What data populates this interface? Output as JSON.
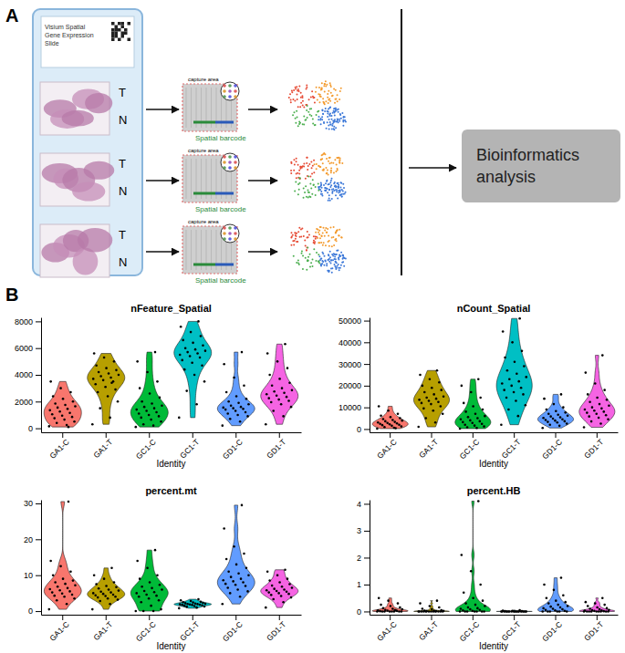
{
  "panel_a": {
    "label": "A",
    "slide_label": [
      "Visium Spatial",
      "Gene Expression",
      "Slide"
    ],
    "sections": [
      {
        "top": "T",
        "bottom": "N"
      },
      {
        "top": "T",
        "bottom": "N"
      },
      {
        "top": "T",
        "bottom": "N"
      }
    ],
    "captures": [
      {
        "label": "capture area",
        "barcode": "Spatial barcode"
      },
      {
        "label": "capture area",
        "barcode": "Spatial barcode"
      },
      {
        "label": "capture area",
        "barcode": "Spatial barcode"
      }
    ],
    "analysis": "Bioinformatics analysis"
  },
  "panel_b": {
    "label": "B"
  },
  "chart_data": [
    {
      "type": "violin",
      "title": "nFeature_Spatial",
      "x_label": "Identity",
      "categories": [
        "GA1-C",
        "GA1-T",
        "GC1-C",
        "GC1-T",
        "GD1-C",
        "GD1-T"
      ],
      "colors": [
        "#F8766D",
        "#B79F00",
        "#00BA38",
        "#00BFC4",
        "#619CFF",
        "#F564E3"
      ],
      "ylim": [
        -300,
        8300
      ],
      "yticks": [
        0,
        2000,
        4000,
        6000,
        8000
      ],
      "values": [
        [
          150,
          250,
          400,
          500,
          650,
          750,
          850,
          950,
          1050,
          1150,
          1250,
          1350,
          1450,
          1550,
          1650,
          1750,
          1850,
          2000,
          2200,
          2400,
          2700,
          3000,
          3500,
          100
        ],
        [
          300,
          800,
          1500,
          2000,
          2400,
          2700,
          2900,
          3100,
          3300,
          3500,
          3600,
          3700,
          3800,
          3900,
          4000,
          4100,
          4200,
          4350,
          4500,
          4700,
          5000,
          5300,
          5600,
          3400
        ],
        [
          100,
          200,
          300,
          500,
          650,
          800,
          900,
          1000,
          1100,
          1200,
          1300,
          1400,
          1500,
          1600,
          1700,
          1850,
          2000,
          2300,
          2600,
          3000,
          3500,
          4200,
          5000,
          5700
        ],
        [
          800,
          1800,
          2800,
          3500,
          4000,
          4400,
          4700,
          4900,
          5100,
          5300,
          5400,
          5500,
          5600,
          5700,
          5800,
          5900,
          6000,
          6200,
          6400,
          6600,
          6900,
          7200,
          7600,
          8000
        ],
        [
          200,
          500,
          700,
          900,
          1000,
          1100,
          1200,
          1300,
          1400,
          1450,
          1500,
          1550,
          1600,
          1700,
          1800,
          1900,
          2000,
          2200,
          2400,
          2700,
          3200,
          3800,
          4800,
          5700
        ],
        [
          300,
          900,
          1300,
          1600,
          1800,
          1950,
          2050,
          2150,
          2250,
          2350,
          2450,
          2550,
          2650,
          2750,
          2850,
          3000,
          3200,
          3400,
          3700,
          4000,
          4500,
          5000,
          5600,
          6300
        ]
      ]
    },
    {
      "type": "violin",
      "title": "nCount_Spatial",
      "x_label": "Identity",
      "categories": [
        "GA1-C",
        "GA1-T",
        "GC1-C",
        "GC1-T",
        "GD1-C",
        "GD1-T"
      ],
      "colors": [
        "#F8766D",
        "#B79F00",
        "#00BA38",
        "#00BFC4",
        "#619CFF",
        "#F564E3"
      ],
      "ylim": [
        -1500,
        51500
      ],
      "yticks": [
        0,
        10000,
        20000,
        30000,
        40000,
        50000
      ],
      "values": [
        [
          200,
          600,
          900,
          1200,
          1500,
          1800,
          2000,
          2200,
          2400,
          2600,
          2800,
          3000,
          3300,
          3600,
          3900,
          4200,
          4600,
          5000,
          5500,
          6200,
          7000,
          8500,
          10500,
          400
        ],
        [
          1000,
          3000,
          5000,
          7000,
          8500,
          9500,
          10500,
          11500,
          12000,
          12500,
          13000,
          13500,
          14000,
          14500,
          15000,
          16000,
          17000,
          18000,
          19000,
          20000,
          21500,
          23000,
          25000,
          27000
        ],
        [
          200,
          500,
          800,
          1200,
          1600,
          2000,
          2400,
          2800,
          3200,
          3600,
          4000,
          4500,
          5000,
          5500,
          6000,
          7000,
          8000,
          9000,
          10500,
          12000,
          14500,
          17000,
          20000,
          23000
        ],
        [
          2000,
          6000,
          9000,
          11000,
          13000,
          14500,
          16000,
          17000,
          18000,
          19000,
          20000,
          21000,
          22000,
          23000,
          24000,
          25500,
          27000,
          29000,
          31000,
          33000,
          36000,
          40000,
          45000,
          51000
        ],
        [
          500,
          1500,
          2000,
          2500,
          3000,
          3300,
          3600,
          3900,
          4200,
          4500,
          4800,
          5100,
          5400,
          5800,
          6200,
          6600,
          7000,
          7600,
          8300,
          9000,
          10000,
          11500,
          14000,
          16000
        ],
        [
          800,
          2500,
          3500,
          4500,
          5200,
          5800,
          6400,
          7000,
          7500,
          8000,
          8500,
          9000,
          9500,
          10000,
          10800,
          11500,
          12500,
          13500,
          14500,
          16000,
          18000,
          21000,
          26000,
          34000
        ]
      ]
    },
    {
      "type": "violin",
      "title": "percent.mt",
      "x_label": "Identity",
      "categories": [
        "GA1-C",
        "GA1-T",
        "GC1-C",
        "GC1-T",
        "GD1-C",
        "GD1-T"
      ],
      "colors": [
        "#F8766D",
        "#B79F00",
        "#00BA38",
        "#00BFC4",
        "#619CFF",
        "#F564E3"
      ],
      "ylim": [
        -1,
        31
      ],
      "yticks": [
        0,
        10,
        20,
        30
      ],
      "values": [
        [
          0.5,
          2,
          3,
          3.5,
          4,
          4.3,
          4.6,
          4.9,
          5.2,
          5.5,
          5.8,
          6.1,
          6.4,
          6.8,
          7.2,
          7.6,
          8,
          8.5,
          9,
          10,
          11,
          12.5,
          14,
          30.5
        ],
        [
          0.5,
          2,
          2.8,
          3.2,
          3.5,
          3.8,
          4,
          4.2,
          4.4,
          4.6,
          4.8,
          5,
          5.2,
          5.4,
          5.7,
          6,
          6.3,
          6.7,
          7,
          7.5,
          8,
          9,
          10,
          12
        ],
        [
          0,
          0,
          0,
          0.5,
          1.5,
          2.5,
          3,
          3.5,
          4,
          4.3,
          4.6,
          5,
          5.3,
          5.6,
          6,
          6.4,
          6.8,
          7.3,
          8,
          9,
          10,
          12,
          14,
          17
        ],
        [
          0.8,
          1,
          1.2,
          1.3,
          1.4,
          1.5,
          1.6,
          1.7,
          1.75,
          1.8,
          1.85,
          1.9,
          1.95,
          2,
          2.05,
          2.1,
          2.2,
          2.3,
          2.4,
          2.5,
          2.6,
          2.8,
          3,
          3.3
        ],
        [
          2,
          4,
          5,
          5.5,
          6,
          6.5,
          7,
          7.3,
          7.6,
          8,
          8.3,
          8.6,
          9,
          9.5,
          10,
          10.5,
          11,
          12,
          13,
          14.5,
          16,
          18,
          23,
          29.5
        ],
        [
          1,
          2.5,
          3.3,
          3.8,
          4.2,
          4.5,
          4.8,
          5,
          5.2,
          5.4,
          5.6,
          5.8,
          6,
          6.2,
          6.5,
          6.8,
          7.1,
          7.5,
          8,
          8.5,
          9,
          10,
          11,
          11.5
        ]
      ]
    },
    {
      "type": "violin",
      "title": "percent.HB",
      "x_label": "Identity",
      "categories": [
        "GA1-C",
        "GA1-T",
        "GC1-C",
        "GC1-T",
        "GD1-C",
        "GD1-T"
      ],
      "colors": [
        "#F8766D",
        "#B79F00",
        "#00BA38",
        "#00BFC4",
        "#619CFF",
        "#F564E3"
      ],
      "ylim": [
        -0.12,
        4.15
      ],
      "yticks": [
        0,
        1,
        2,
        3,
        4
      ],
      "values": [
        [
          0,
          0,
          0,
          0,
          0,
          0,
          0,
          0,
          0.01,
          0.02,
          0.03,
          0.04,
          0.05,
          0.06,
          0.08,
          0.1,
          0.12,
          0.15,
          0.2,
          0.25,
          0.3,
          0.4,
          0.5,
          0.05
        ],
        [
          0,
          0,
          0,
          0,
          0,
          0,
          0,
          0,
          0,
          0,
          0,
          0,
          0.01,
          0.01,
          0.02,
          0.02,
          0.03,
          0.05,
          0.08,
          0.1,
          0.15,
          0.2,
          0.3,
          0.4
        ],
        [
          0,
          0,
          0,
          0,
          0,
          0,
          0,
          0.02,
          0.04,
          0.06,
          0.08,
          0.1,
          0.12,
          0.15,
          0.2,
          0.25,
          0.3,
          0.4,
          0.5,
          0.7,
          1.0,
          1.5,
          2.1,
          4.1
        ],
        [
          0,
          0,
          0,
          0,
          0,
          0,
          0,
          0,
          0,
          0,
          0,
          0,
          0,
          0,
          0,
          0,
          0,
          0,
          0,
          0.01,
          0.01,
          0.02,
          0.03,
          0.05
        ],
        [
          0,
          0,
          0,
          0,
          0,
          0,
          0.02,
          0.04,
          0.06,
          0.08,
          0.1,
          0.12,
          0.15,
          0.18,
          0.2,
          0.25,
          0.3,
          0.35,
          0.4,
          0.5,
          0.6,
          0.8,
          1.0,
          1.25
        ],
        [
          0,
          0,
          0,
          0,
          0,
          0,
          0,
          0,
          0,
          0.01,
          0.02,
          0.03,
          0.04,
          0.05,
          0.06,
          0.08,
          0.1,
          0.12,
          0.15,
          0.2,
          0.25,
          0.3,
          0.35,
          0.5
        ]
      ]
    }
  ]
}
